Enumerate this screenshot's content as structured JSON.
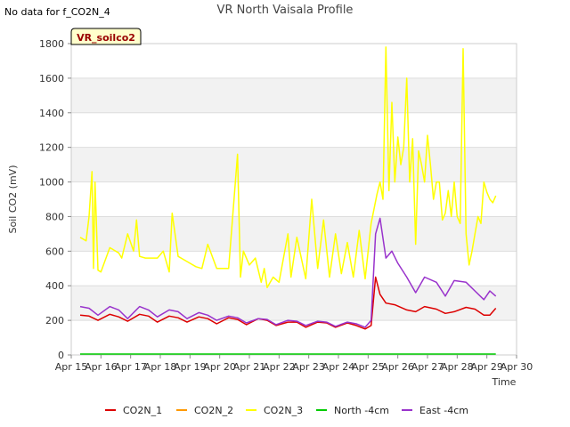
{
  "notice": "No data for f_CO2N_4",
  "chart_data": {
    "type": "line",
    "title": "VR North Vaisala Profile",
    "badge": "VR_soilco2",
    "xlabel": "Time",
    "ylabel": "Soil CO2 (mV)",
    "xlim": [
      15,
      30
    ],
    "ylim": [
      0,
      1800
    ],
    "yticks": [
      0,
      200,
      400,
      600,
      800,
      1000,
      1200,
      1400,
      1600,
      1800
    ],
    "xticks": [
      {
        "v": 15,
        "label": "Apr 15"
      },
      {
        "v": 16,
        "label": "Apr 16"
      },
      {
        "v": 17,
        "label": "Apr 17"
      },
      {
        "v": 18,
        "label": "Apr 18"
      },
      {
        "v": 19,
        "label": "Apr 19"
      },
      {
        "v": 20,
        "label": "Apr 20"
      },
      {
        "v": 21,
        "label": "Apr 21"
      },
      {
        "v": 22,
        "label": "Apr 22"
      },
      {
        "v": 23,
        "label": "Apr 23"
      },
      {
        "v": 24,
        "label": "Apr 24"
      },
      {
        "v": 25,
        "label": "Apr 25"
      },
      {
        "v": 26,
        "label": "Apr 26"
      },
      {
        "v": 27,
        "label": "Apr 27"
      },
      {
        "v": 28,
        "label": "Apr 28"
      },
      {
        "v": 29,
        "label": "Apr 29"
      },
      {
        "v": 30,
        "label": "Apr 30"
      }
    ],
    "grid": true,
    "legend_position": "bottom",
    "series": [
      {
        "name": "CO2N_1",
        "color": "#dd0000",
        "x": [
          15.3,
          15.6,
          15.9,
          16.3,
          16.6,
          16.9,
          17.3,
          17.6,
          17.9,
          18.3,
          18.6,
          18.9,
          19.3,
          19.6,
          19.9,
          20.3,
          20.6,
          20.9,
          21.3,
          21.6,
          21.9,
          22.3,
          22.6,
          22.9,
          23.3,
          23.6,
          23.9,
          24.3,
          24.6,
          24.9,
          25.1,
          25.25,
          25.4,
          25.6,
          25.9,
          26.3,
          26.6,
          26.9,
          27.3,
          27.6,
          27.9,
          28.3,
          28.6,
          28.9,
          29.1,
          29.3
        ],
        "y": [
          230,
          225,
          200,
          235,
          220,
          195,
          235,
          225,
          190,
          225,
          215,
          190,
          220,
          210,
          180,
          215,
          205,
          175,
          210,
          200,
          170,
          190,
          190,
          160,
          190,
          185,
          160,
          185,
          170,
          150,
          170,
          450,
          350,
          300,
          290,
          260,
          250,
          280,
          265,
          240,
          250,
          275,
          265,
          230,
          230,
          270
        ]
      },
      {
        "name": "CO2N_2",
        "color": "#ff9900",
        "x": [],
        "y": []
      },
      {
        "name": "CO2N_3",
        "color": "#ffff00",
        "x": [
          15.3,
          15.5,
          15.6,
          15.7,
          15.75,
          15.8,
          15.9,
          16.0,
          16.3,
          16.6,
          16.7,
          16.9,
          17.1,
          17.2,
          17.3,
          17.5,
          17.9,
          18.1,
          18.3,
          18.4,
          18.6,
          18.9,
          19.2,
          19.4,
          19.6,
          19.9,
          20.3,
          20.6,
          20.7,
          20.8,
          21.0,
          21.2,
          21.4,
          21.5,
          21.6,
          21.8,
          22.0,
          22.3,
          22.4,
          22.6,
          22.9,
          23.1,
          23.3,
          23.5,
          23.7,
          23.9,
          24.1,
          24.3,
          24.5,
          24.7,
          24.9,
          25.1,
          25.3,
          25.4,
          25.5,
          25.6,
          25.7,
          25.8,
          25.9,
          26.0,
          26.1,
          26.2,
          26.3,
          26.4,
          26.5,
          26.6,
          26.7,
          26.8,
          26.9,
          27.0,
          27.1,
          27.2,
          27.3,
          27.4,
          27.5,
          27.6,
          27.7,
          27.8,
          27.9,
          28.0,
          28.1,
          28.2,
          28.3,
          28.4,
          28.5,
          28.6,
          28.7,
          28.8,
          28.9,
          29.0,
          29.1,
          29.2,
          29.3
        ],
        "y": [
          680,
          660,
          800,
          1060,
          500,
          1000,
          490,
          480,
          620,
          590,
          560,
          700,
          600,
          780,
          570,
          560,
          560,
          600,
          480,
          820,
          570,
          540,
          510,
          500,
          640,
          500,
          500,
          1160,
          450,
          600,
          520,
          560,
          420,
          500,
          390,
          450,
          420,
          700,
          450,
          680,
          440,
          900,
          500,
          780,
          450,
          700,
          470,
          650,
          450,
          720,
          440,
          760,
          930,
          1000,
          900,
          1780,
          950,
          1460,
          1000,
          1260,
          1100,
          1200,
          1600,
          1000,
          1250,
          640,
          1180,
          1100,
          1000,
          1270,
          1100,
          900,
          1000,
          1000,
          780,
          820,
          950,
          800,
          1000,
          800,
          760,
          1770,
          700,
          520,
          600,
          700,
          800,
          760,
          1000,
          940,
          900,
          880,
          920
        ]
      },
      {
        "name": "North -4cm",
        "color": "#00cc00",
        "x": [
          15.3,
          29.3
        ],
        "y": [
          5,
          5
        ]
      },
      {
        "name": "East -4cm",
        "color": "#9933cc",
        "x": [
          15.3,
          15.6,
          15.9,
          16.3,
          16.6,
          16.9,
          17.3,
          17.6,
          17.9,
          18.3,
          18.6,
          18.9,
          19.3,
          19.6,
          19.9,
          20.3,
          20.6,
          20.9,
          21.3,
          21.6,
          21.9,
          22.3,
          22.6,
          22.9,
          23.3,
          23.6,
          23.9,
          24.3,
          24.6,
          24.9,
          25.1,
          25.25,
          25.4,
          25.6,
          25.8,
          26.0,
          26.3,
          26.6,
          26.9,
          27.3,
          27.6,
          27.9,
          28.3,
          28.6,
          28.9,
          29.1,
          29.3
        ],
        "y": [
          280,
          270,
          230,
          280,
          260,
          210,
          280,
          260,
          220,
          260,
          250,
          210,
          245,
          230,
          200,
          225,
          215,
          185,
          210,
          205,
          175,
          200,
          195,
          170,
          195,
          190,
          165,
          190,
          180,
          160,
          200,
          700,
          790,
          560,
          600,
          530,
          450,
          360,
          450,
          420,
          340,
          430,
          420,
          370,
          320,
          370,
          340
        ]
      }
    ]
  }
}
